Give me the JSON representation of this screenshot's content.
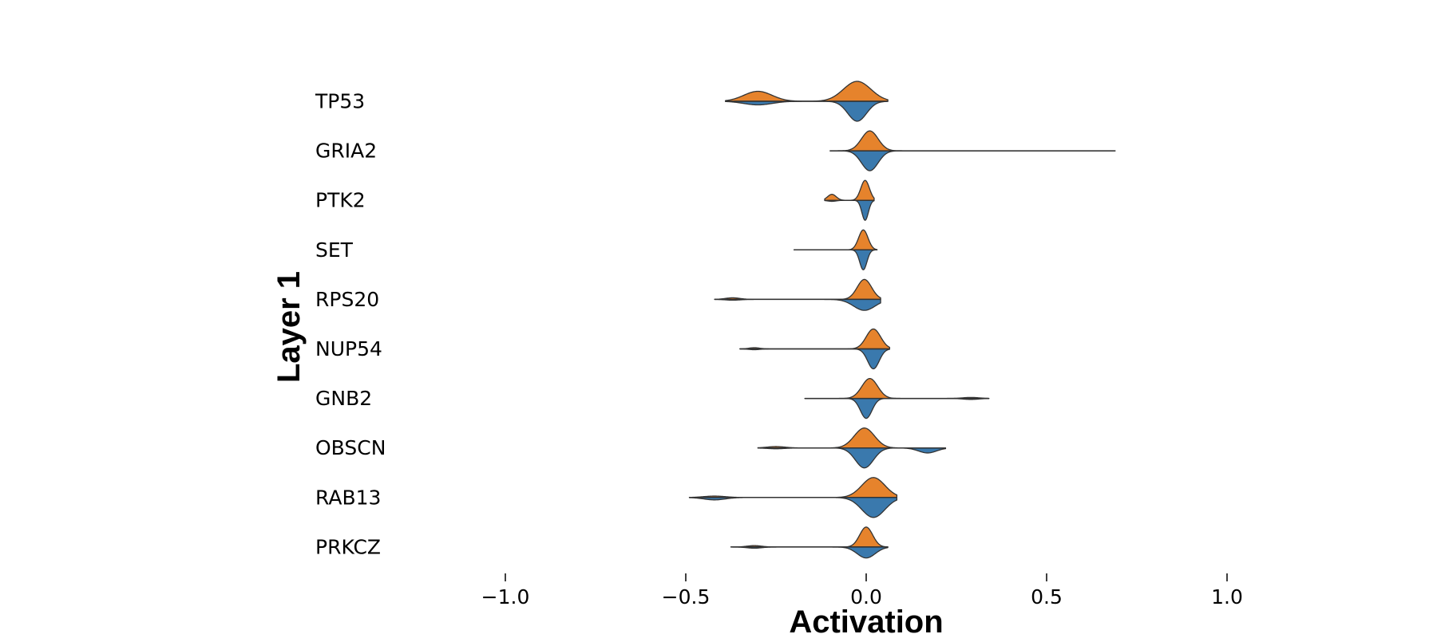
{
  "chart_data": {
    "type": "violin",
    "xlabel": "Activation",
    "ylabel": "Layer 1",
    "xlim": [
      -1.0,
      1.0
    ],
    "xticks": [
      -1.0,
      -0.5,
      0.0,
      0.5,
      1.0
    ],
    "xtick_labels": [
      "−1.0",
      "−0.5",
      "0.0",
      "0.5",
      "1.0"
    ],
    "split": true,
    "grid": false,
    "legend": "none",
    "colors": {
      "upper": "#e6832c",
      "lower": "#3a79ad",
      "outline": "#333333"
    },
    "categories": [
      "TP53",
      "GRIA2",
      "PTK2",
      "SET",
      "RPS20",
      "NUP54",
      "GNB2",
      "OBSCN",
      "RAB13",
      "PRKCZ"
    ],
    "violins": [
      {
        "label": "TP53",
        "min": -0.39,
        "max": 0.06,
        "upper": [
          [
            -0.3,
            0.039,
            0.5
          ],
          [
            -0.025,
            0.038,
            1.0
          ]
        ],
        "lower": [
          [
            -0.3,
            0.039,
            0.18
          ],
          [
            -0.025,
            0.026,
            1.0
          ]
        ]
      },
      {
        "label": "GRIA2",
        "min": -0.1,
        "max": 0.69,
        "upper": [
          [
            0.01,
            0.023,
            1.0
          ]
        ],
        "lower": [
          [
            0.01,
            0.023,
            1.0
          ]
        ]
      },
      {
        "label": "PTK2",
        "min": -0.115,
        "max": 0.022,
        "upper": [
          [
            -0.095,
            0.012,
            0.3
          ],
          [
            -0.003,
            0.012,
            1.0
          ]
        ],
        "lower": [
          [
            -0.095,
            0.012,
            0.05
          ],
          [
            -0.003,
            0.009,
            1.0
          ]
        ]
      },
      {
        "label": "SET",
        "min": -0.2,
        "max": 0.03,
        "upper": [
          [
            -0.008,
            0.013,
            1.0
          ]
        ],
        "lower": [
          [
            -0.008,
            0.01,
            1.0
          ]
        ]
      },
      {
        "label": "RPS20",
        "min": -0.42,
        "max": 0.04,
        "upper": [
          [
            -0.37,
            0.02,
            0.08
          ],
          [
            -0.005,
            0.02,
            1.0
          ]
        ],
        "lower": [
          [
            -0.37,
            0.02,
            0.04
          ],
          [
            -0.005,
            0.03,
            0.55
          ]
        ]
      },
      {
        "label": "NUP54",
        "min": -0.35,
        "max": 0.065,
        "upper": [
          [
            -0.31,
            0.015,
            0.06
          ],
          [
            0.02,
            0.02,
            1.0
          ]
        ],
        "lower": [
          [
            -0.31,
            0.015,
            0.04
          ],
          [
            0.02,
            0.016,
            1.0
          ]
        ]
      },
      {
        "label": "GNB2",
        "min": -0.17,
        "max": 0.34,
        "upper": [
          [
            0.01,
            0.022,
            1.0
          ],
          [
            0.29,
            0.022,
            0.05
          ]
        ],
        "lower": [
          [
            0.0,
            0.016,
            1.0
          ],
          [
            0.29,
            0.022,
            0.05
          ]
        ]
      },
      {
        "label": "OBSCN",
        "min": -0.3,
        "max": 0.22,
        "upper": [
          [
            -0.25,
            0.025,
            0.07
          ],
          [
            -0.005,
            0.028,
            1.0
          ]
        ],
        "lower": [
          [
            -0.25,
            0.025,
            0.04
          ],
          [
            -0.005,
            0.025,
            1.0
          ],
          [
            0.17,
            0.025,
            0.25
          ]
        ]
      },
      {
        "label": "RAB13",
        "min": -0.49,
        "max": 0.085,
        "upper": [
          [
            -0.42,
            0.03,
            0.07
          ],
          [
            0.02,
            0.032,
            1.0
          ]
        ],
        "lower": [
          [
            -0.42,
            0.03,
            0.12
          ],
          [
            0.02,
            0.032,
            1.0
          ]
        ]
      },
      {
        "label": "PRKCZ",
        "min": -0.375,
        "max": 0.06,
        "upper": [
          [
            -0.31,
            0.02,
            0.07
          ],
          [
            0.0,
            0.018,
            1.0
          ]
        ],
        "lower": [
          [
            -0.31,
            0.02,
            0.06
          ],
          [
            0.0,
            0.025,
            0.55
          ]
        ]
      }
    ]
  }
}
